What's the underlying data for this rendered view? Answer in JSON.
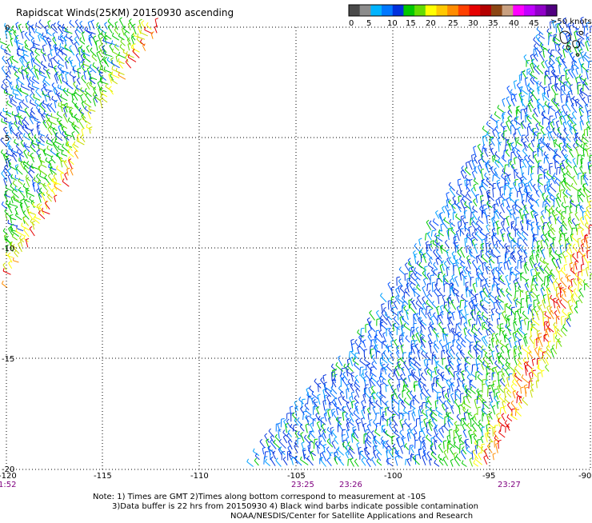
{
  "title": "Rapidscat Winds(25KM) 20150930 ascending",
  "legend": {
    "unit_label": ">50 knots",
    "labels": [
      "0",
      "5",
      "10",
      "15",
      "20",
      "25",
      "30",
      "35",
      "40",
      "45"
    ],
    "colors": [
      "#4a4a4a",
      "#8c8c8c",
      "#00b4ff",
      "#0078ff",
      "#0030dc",
      "#00c800",
      "#64dc00",
      "#ffff00",
      "#ffc800",
      "#ff8c00",
      "#ff4000",
      "#e60000",
      "#b40000",
      "#8b4513",
      "#c8a080",
      "#ff00ff",
      "#c000ff",
      "#9000c8",
      "#500080"
    ]
  },
  "axes": {
    "lon_labels": [
      "-120",
      "-115",
      "-110",
      "-105",
      "-100",
      "-95",
      "-90"
    ],
    "lat_labels": [
      "0",
      "-5",
      "-10",
      "-15",
      "-20"
    ]
  },
  "times": [
    "1:52",
    "23:25",
    "23:26",
    "23:27"
  ],
  "notes": {
    "line1": "Note: 1) Times are GMT 2)Times along bottom correspond to measurement at -10S",
    "line2": "3)Data buffer is 22 hrs from 20150930 4) Black wind barbs indicate possible contamination",
    "line3": "NOAA/NESDIS/Center for Satellite Applications and Research"
  },
  "colors": {
    "time_label": "#800080",
    "grid": "#000000"
  }
}
